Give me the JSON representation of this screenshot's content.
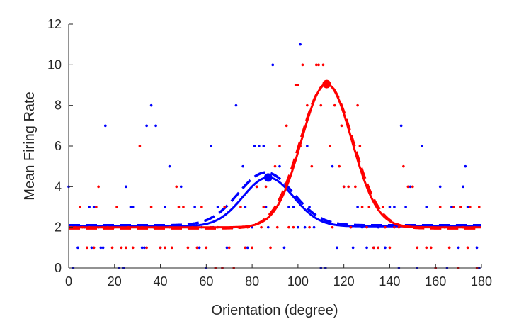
{
  "chart_data": {
    "type": "scatter",
    "title": "",
    "xlabel": "Orientation (degree)",
    "ylabel": "Mean Firing Rate",
    "xlim": [
      0,
      180
    ],
    "ylim": [
      0,
      12
    ],
    "xticks": [
      "0",
      "20",
      "40",
      "60",
      "80",
      "100",
      "120",
      "140",
      "160",
      "180"
    ],
    "yticks": [
      "0",
      "2",
      "4",
      "6",
      "8",
      "10",
      "12"
    ],
    "grid": false,
    "legend": "none",
    "series": [
      {
        "color": "#0000ff",
        "points": [
          [
            0,
            4
          ],
          [
            1,
            2
          ],
          [
            2,
            0
          ],
          [
            4,
            1
          ],
          [
            7,
            2
          ],
          [
            9,
            3
          ],
          [
            10,
            1
          ],
          [
            11,
            3
          ],
          [
            13,
            2
          ],
          [
            14,
            1
          ],
          [
            15,
            1
          ],
          [
            16,
            7
          ],
          [
            18,
            2
          ],
          [
            20,
            2
          ],
          [
            22,
            0
          ],
          [
            24,
            0
          ],
          [
            25,
            4
          ],
          [
            27,
            3
          ],
          [
            28,
            3
          ],
          [
            30,
            2
          ],
          [
            32,
            1
          ],
          [
            33,
            1
          ],
          [
            34,
            7
          ],
          [
            36,
            8
          ],
          [
            37,
            2
          ],
          [
            38,
            7
          ],
          [
            40,
            1
          ],
          [
            42,
            3
          ],
          [
            44,
            5
          ],
          [
            46,
            2
          ],
          [
            49,
            4
          ],
          [
            52,
            2
          ],
          [
            55,
            3
          ],
          [
            57,
            1
          ],
          [
            58,
            2
          ],
          [
            60,
            0
          ],
          [
            62,
            6
          ],
          [
            63,
            2
          ],
          [
            65,
            3
          ],
          [
            67,
            0
          ],
          [
            69,
            1
          ],
          [
            72,
            2
          ],
          [
            73,
            8
          ],
          [
            75,
            2
          ],
          [
            76,
            5
          ],
          [
            77,
            3
          ],
          [
            78,
            1
          ],
          [
            80,
            2
          ],
          [
            81,
            6
          ],
          [
            82,
            4
          ],
          [
            83,
            6
          ],
          [
            85,
            6
          ],
          [
            86,
            3
          ],
          [
            87,
            2
          ],
          [
            89,
            10
          ],
          [
            92,
            5
          ],
          [
            94,
            1
          ],
          [
            96,
            3
          ],
          [
            98,
            3
          ],
          [
            100,
            2
          ],
          [
            101,
            11
          ],
          [
            103,
            2
          ],
          [
            104,
            6
          ],
          [
            105,
            3
          ],
          [
            107,
            2
          ],
          [
            110,
            0
          ],
          [
            112,
            0
          ],
          [
            115,
            5
          ],
          [
            117,
            1
          ],
          [
            120,
            4
          ],
          [
            123,
            2
          ],
          [
            124,
            1
          ],
          [
            126,
            3
          ],
          [
            128,
            2
          ],
          [
            130,
            1
          ],
          [
            133,
            1
          ],
          [
            135,
            2
          ],
          [
            138,
            1
          ],
          [
            140,
            3
          ],
          [
            142,
            3
          ],
          [
            144,
            0
          ],
          [
            145,
            7
          ],
          [
            147,
            3
          ],
          [
            149,
            4
          ],
          [
            152,
            0
          ],
          [
            154,
            6
          ],
          [
            156,
            3
          ],
          [
            158,
            2
          ],
          [
            160,
            0
          ],
          [
            162,
            4
          ],
          [
            164,
            2
          ],
          [
            165,
            0
          ],
          [
            167,
            3
          ],
          [
            170,
            1
          ],
          [
            172,
            4
          ],
          [
            173,
            5
          ],
          [
            174,
            3
          ],
          [
            176,
            2
          ],
          [
            178,
            1
          ],
          [
            179,
            0
          ]
        ],
        "fit": {
          "model": "gaussian",
          "baseline": 2.05,
          "peak": 4.45,
          "center": 87,
          "sigma": 11
        },
        "pref_fit": {
          "model": "gaussian",
          "baseline": 2.1,
          "peak": 4.7,
          "center": 86,
          "sigma": 12
        },
        "peak_marker": [
          87,
          4.45
        ]
      },
      {
        "color": "#ff0000",
        "points": [
          [
            1,
            2
          ],
          [
            3,
            2
          ],
          [
            5,
            3
          ],
          [
            6,
            2
          ],
          [
            8,
            1
          ],
          [
            9,
            2
          ],
          [
            11,
            1
          ],
          [
            12,
            3
          ],
          [
            13,
            4
          ],
          [
            15,
            2
          ],
          [
            17,
            2
          ],
          [
            19,
            1
          ],
          [
            21,
            3
          ],
          [
            23,
            1
          ],
          [
            25,
            1
          ],
          [
            26,
            2
          ],
          [
            28,
            1
          ],
          [
            30,
            2
          ],
          [
            31,
            6
          ],
          [
            32,
            2
          ],
          [
            34,
            1
          ],
          [
            36,
            3
          ],
          [
            38,
            2
          ],
          [
            40,
            1
          ],
          [
            42,
            1
          ],
          [
            44,
            2
          ],
          [
            45,
            1
          ],
          [
            47,
            4
          ],
          [
            48,
            3
          ],
          [
            50,
            3
          ],
          [
            52,
            1
          ],
          [
            54,
            2
          ],
          [
            56,
            1
          ],
          [
            58,
            3
          ],
          [
            60,
            1
          ],
          [
            62,
            2
          ],
          [
            64,
            0
          ],
          [
            65,
            2
          ],
          [
            67,
            0
          ],
          [
            68,
            3
          ],
          [
            70,
            1
          ],
          [
            72,
            0
          ],
          [
            74,
            2
          ],
          [
            75,
            3
          ],
          [
            77,
            1
          ],
          [
            78,
            2
          ],
          [
            80,
            1
          ],
          [
            82,
            4
          ],
          [
            84,
            2
          ],
          [
            85,
            3
          ],
          [
            86,
            4
          ],
          [
            88,
            1
          ],
          [
            90,
            5
          ],
          [
            91,
            2
          ],
          [
            92,
            6
          ],
          [
            95,
            7
          ],
          [
            96,
            2
          ],
          [
            98,
            2
          ],
          [
            99,
            9
          ],
          [
            100,
            9
          ],
          [
            101,
            6
          ],
          [
            102,
            10
          ],
          [
            104,
            8
          ],
          [
            105,
            2
          ],
          [
            106,
            5
          ],
          [
            108,
            10
          ],
          [
            109,
            10
          ],
          [
            110,
            8
          ],
          [
            111,
            10
          ],
          [
            112,
            9
          ],
          [
            113,
            9
          ],
          [
            114,
            6
          ],
          [
            115,
            2
          ],
          [
            116,
            8
          ],
          [
            118,
            5
          ],
          [
            119,
            7
          ],
          [
            120,
            4
          ],
          [
            122,
            4
          ],
          [
            123,
            2
          ],
          [
            125,
            4
          ],
          [
            126,
            8
          ],
          [
            127,
            6
          ],
          [
            128,
            3
          ],
          [
            130,
            2
          ],
          [
            131,
            3
          ],
          [
            133,
            1
          ],
          [
            135,
            1
          ],
          [
            137,
            3
          ],
          [
            138,
            2
          ],
          [
            140,
            1
          ],
          [
            142,
            2
          ],
          [
            144,
            2
          ],
          [
            146,
            5
          ],
          [
            148,
            4
          ],
          [
            150,
            4
          ],
          [
            152,
            1
          ],
          [
            154,
            2
          ],
          [
            156,
            1
          ],
          [
            158,
            1
          ],
          [
            160,
            0
          ],
          [
            162,
            3
          ],
          [
            164,
            2
          ],
          [
            166,
            1
          ],
          [
            168,
            3
          ],
          [
            170,
            0
          ],
          [
            171,
            3
          ],
          [
            172,
            2
          ],
          [
            174,
            1
          ],
          [
            175,
            3
          ],
          [
            177,
            2
          ],
          [
            178,
            0
          ],
          [
            179,
            3
          ]
        ],
        "fit": {
          "model": "gaussian",
          "baseline": 2.0,
          "peak": 9.05,
          "center": 112.5,
          "sigma": 11
        },
        "pref_fit": {
          "model": "gaussian",
          "baseline": 1.95,
          "peak": 9.05,
          "center": 112.5,
          "sigma": 11.5
        },
        "peak_marker": [
          112.5,
          9.05
        ]
      }
    ]
  }
}
